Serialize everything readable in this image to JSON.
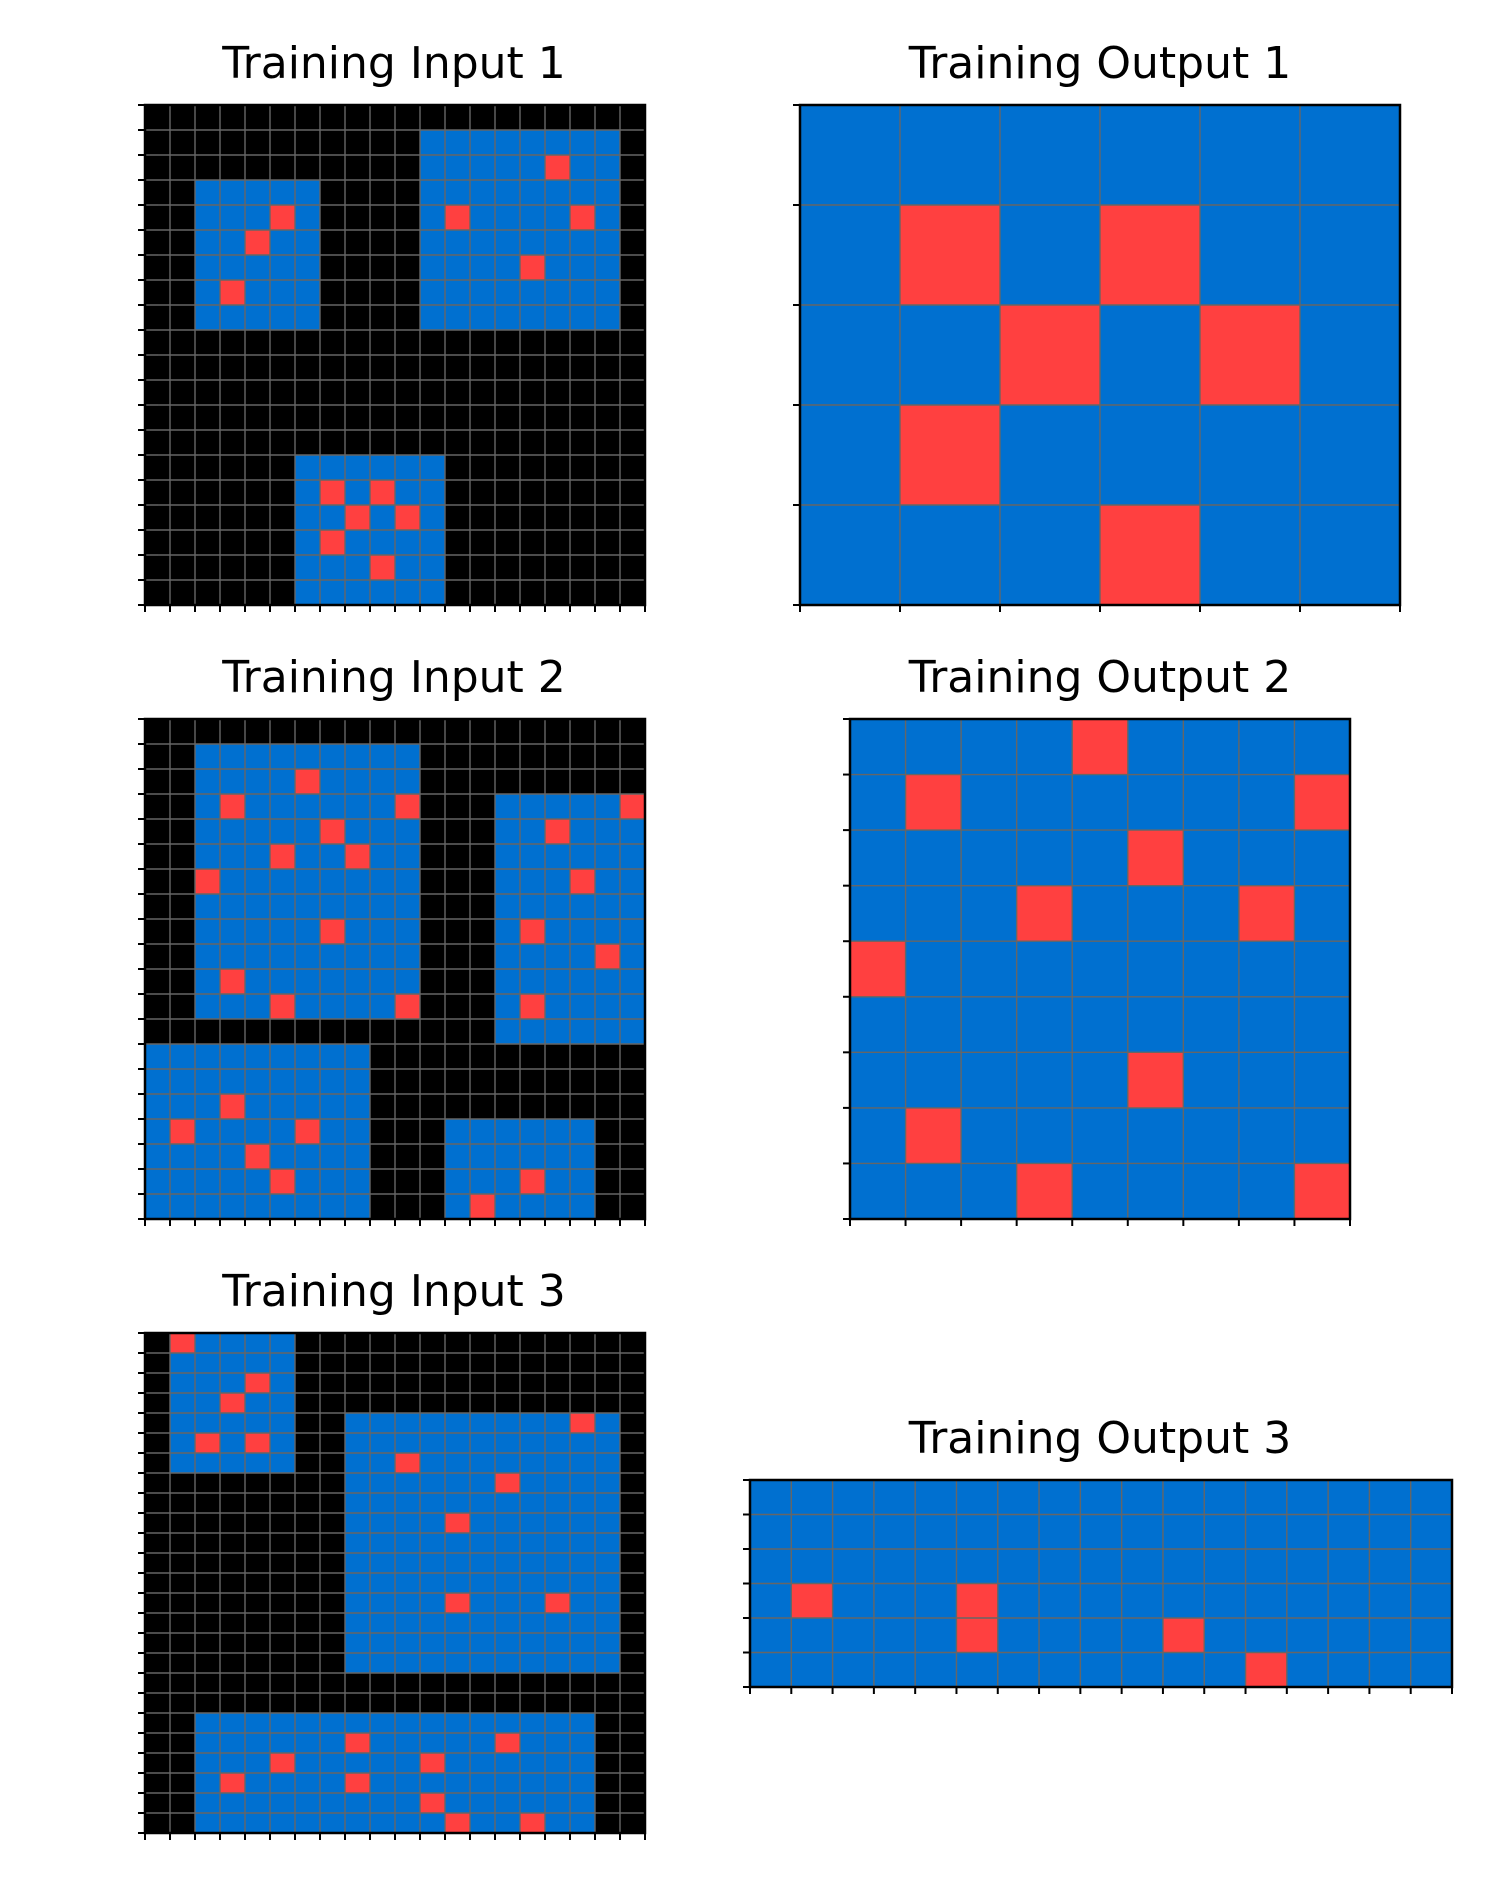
{
  "colors": {
    "0": "#000000",
    "1": "#0070d0",
    "2": "#ff4040",
    "grid_line": "#666666"
  },
  "panels": [
    {
      "title": "Training Input 1",
      "rows": [
        "00000000000000000000",
        "00000000000111111110",
        "00000000000111112110",
        "00111110000111111110",
        "00111210000121111210",
        "00112110000111111110",
        "00111110000111121110",
        "00121110000111111110",
        "00111110000111111110",
        "00000000000000000000",
        "00000000000000000000",
        "00000000000000000000",
        "00000000000000000000",
        "00000000000000000000",
        "00000011111100000000",
        "00000012121100000000",
        "00000011212100000000",
        "00000012111100000000",
        "00000011121100000000",
        "00000011111100000000"
      ]
    },
    {
      "title": "Training Output 1",
      "rows": [
        "111111",
        "121211",
        "112121",
        "121111",
        "111211"
      ]
    },
    {
      "title": "Training Input 2",
      "rows": [
        "00000000000000000000",
        "00111111111000000000",
        "00111121111000000000",
        "00121111112000111112",
        "00111112111000112111",
        "00111211211000111111",
        "00211111111000111211",
        "00111111111000111111",
        "00111112111000121111",
        "00111111111000111121",
        "00121111111000111111",
        "00111211112000121111",
        "00000000000000111111",
        "11111111100000000000",
        "11111111100000000000",
        "11121111100000000000",
        "12111121100011111100",
        "11112111100011111100",
        "11111211100011121100",
        "11111111100012111100"
      ]
    },
    {
      "title": "Training Output 2",
      "rows": [
        "111121111",
        "121111112",
        "111112111",
        "111211121",
        "211111111",
        "111111111",
        "111112111",
        "121111111",
        "111211112"
      ]
    },
    {
      "title": "Training Input 3",
      "rows": [
        "02111100000000000000",
        "01111100000000000000",
        "01112100000000000000",
        "01121100000000000000",
        "01111100111111111210",
        "01212100111111111110",
        "01111100112111111110",
        "00000000111111211110",
        "00000000111111111110",
        "00000000111121111110",
        "00000000111111111110",
        "00000000111111111110",
        "00000000111111111110",
        "00000000111121112110",
        "00000000111111111110",
        "00000000111111111110",
        "00000000111111111110",
        "00000000000000000000",
        "00000000000000000000",
        "00111111111111111100",
        "00111111211111211100",
        "00111211111211111100",
        "00121111211111111100",
        "00111111111211111100",
        "00111111111121121100"
      ]
    },
    {
      "title": "Training Output 3",
      "rows": [
        "11111111111111111",
        "11111111111111111",
        "11111111111111111",
        "12111211111111111",
        "11111211112111111",
        "11111111111121111"
      ]
    }
  ]
}
